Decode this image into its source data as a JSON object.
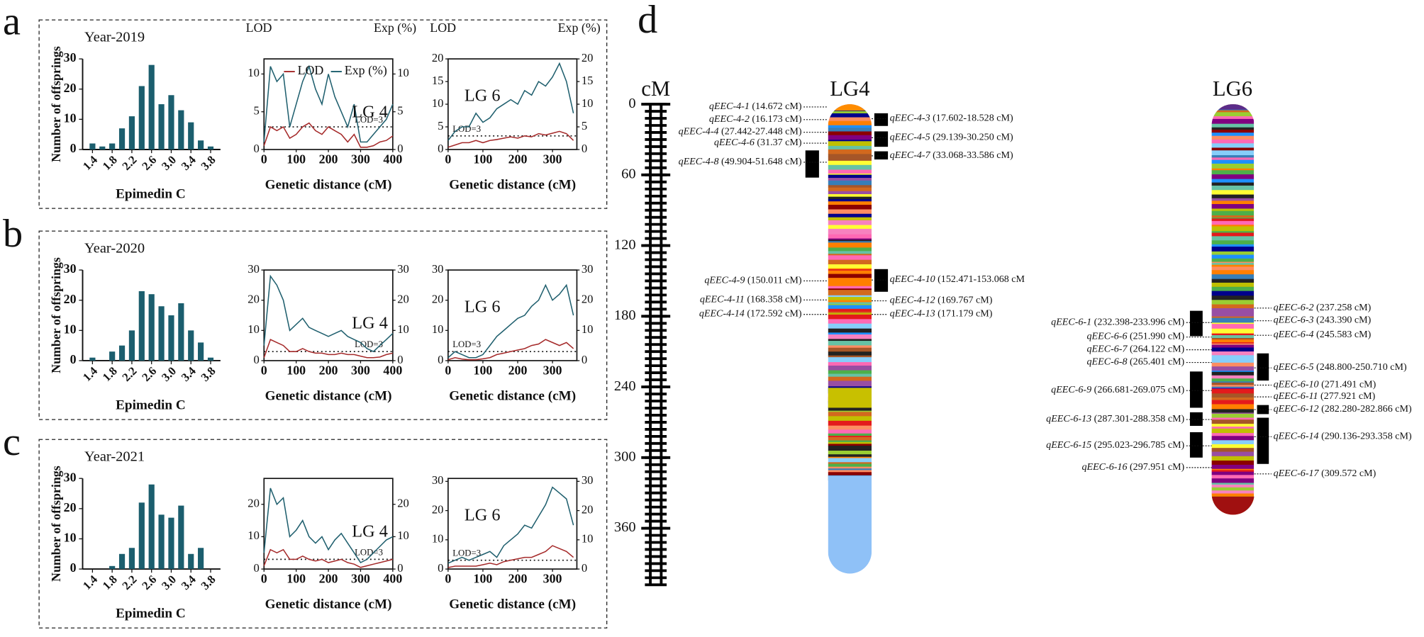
{
  "panel_labels": [
    "a",
    "b",
    "c",
    "d"
  ],
  "chart_data": [
    {
      "type": "bar",
      "title": "Year-2019",
      "x": [
        1.4,
        1.6,
        1.8,
        2.0,
        2.2,
        2.4,
        2.6,
        2.8,
        3.0,
        3.2,
        3.4,
        3.6,
        3.8
      ],
      "values": [
        2,
        1,
        2,
        7,
        11,
        21,
        28,
        15,
        18,
        13,
        9,
        3,
        1
      ],
      "color": "#1b5e6e",
      "xlim": [
        1.2,
        4.0
      ],
      "xticks": [
        1.4,
        1.8,
        2.2,
        2.6,
        {
          "value": 3,
          "label": "3.0"
        },
        3.4,
        3.8
      ],
      "ylim": [
        0,
        30
      ],
      "yticks": [
        0,
        10,
        20,
        30
      ],
      "xlabel": "Epimedin C",
      "ylabel": "Number of  offsprings"
    },
    {
      "type": "line",
      "annotation": "LG 4",
      "x": [
        0,
        20,
        40,
        60,
        80,
        100,
        120,
        140,
        160,
        180,
        200,
        220,
        240,
        260,
        280,
        300,
        320,
        340,
        360,
        380,
        400
      ],
      "series": [
        {
          "name": "LOD",
          "color": "#a52a2a",
          "values": [
            0.5,
            3,
            2.5,
            3,
            1.5,
            2,
            3,
            3.5,
            2.5,
            2,
            3,
            2.5,
            2,
            1,
            2,
            0.3,
            0.3,
            0.5,
            1,
            1.2,
            1.8
          ]
        },
        {
          "name": "Exp (%)",
          "color": "#1f5f6e",
          "axis": "y2",
          "values": [
            1,
            11,
            9,
            10,
            3,
            6,
            9,
            11,
            8,
            6,
            10,
            7,
            5,
            3,
            6,
            1,
            1,
            2,
            3,
            4,
            6
          ]
        }
      ],
      "xlim": [
        0,
        400
      ],
      "xticks": [
        0,
        100,
        200,
        300,
        400
      ],
      "ylim": [
        0,
        12
      ],
      "yticks": [
        0,
        5,
        10
      ],
      "y2lim": [
        0,
        12
      ],
      "y2ticks": [
        0,
        5,
        10
      ],
      "xlabel": "Genetic distance (cM)",
      "ylabel": "LOD",
      "y2label": "Exp (%)",
      "threshold": 3,
      "threshold_label": "LOD=3",
      "legend": "top-left"
    },
    {
      "type": "line",
      "annotation": "LG 6",
      "x": [
        0,
        20,
        40,
        60,
        80,
        100,
        120,
        140,
        160,
        180,
        200,
        220,
        240,
        260,
        280,
        300,
        320,
        340,
        360
      ],
      "series": [
        {
          "name": "LOD",
          "color": "#a52a2a",
          "values": [
            0.5,
            1,
            1.5,
            1.5,
            2,
            1.5,
            2,
            2.2,
            2.5,
            2.8,
            2.5,
            3,
            2.8,
            3.5,
            3.2,
            3.6,
            4,
            3.5,
            2
          ]
        },
        {
          "name": "Exp (%)",
          "color": "#1f5f6e",
          "axis": "y2",
          "values": [
            2,
            4,
            5,
            5,
            8,
            6,
            7,
            9,
            10,
            11,
            10,
            13,
            12,
            15,
            14,
            16,
            19,
            15,
            8
          ]
        }
      ],
      "xlim": [
        0,
        370
      ],
      "xticks": [
        0,
        100,
        200,
        300
      ],
      "ylim": [
        0,
        20
      ],
      "yticks": [
        0,
        5,
        10,
        15,
        20
      ],
      "y2lim": [
        0,
        20
      ],
      "y2ticks": [
        0,
        5,
        10,
        15,
        20
      ],
      "xlabel": "Genetic distance (cM)",
      "ylabel": "LOD",
      "y2label": "Exp (%)",
      "threshold": 3,
      "threshold_label": "LOD=3"
    },
    {
      "type": "bar",
      "title": "Year-2020",
      "x": [
        1.4,
        1.6,
        1.8,
        2.0,
        2.2,
        2.4,
        2.6,
        2.8,
        3.0,
        3.2,
        3.4,
        3.6,
        3.8
      ],
      "values": [
        1,
        0,
        3,
        5,
        10,
        23,
        22,
        18,
        15,
        19,
        10,
        6,
        1
      ],
      "color": "#1b5e6e",
      "xlim": [
        1.2,
        4.0
      ],
      "xticks": [
        1.4,
        1.8,
        2.2,
        2.6,
        {
          "value": 3,
          "label": "3.0"
        },
        3.4,
        3.8
      ],
      "ylim": [
        0,
        30
      ],
      "yticks": [
        0,
        10,
        20,
        30
      ],
      "xlabel": "Epimedin C",
      "ylabel": "Number of  offsprings"
    },
    {
      "type": "line",
      "annotation": "LG 4",
      "x": [
        0,
        20,
        40,
        60,
        80,
        100,
        120,
        140,
        160,
        180,
        200,
        220,
        240,
        260,
        280,
        300,
        320,
        340,
        360,
        380,
        400
      ],
      "series": [
        {
          "name": "LOD",
          "color": "#a52a2a",
          "values": [
            1,
            7,
            6,
            5,
            3,
            3,
            4,
            3,
            2.5,
            2.5,
            2,
            2,
            2.5,
            2,
            2,
            1.5,
            1,
            1,
            1.2,
            2,
            2.5
          ]
        },
        {
          "name": "Exp (%)",
          "color": "#1f5f6e",
          "axis": "y2",
          "values": [
            5,
            28,
            25,
            20,
            10,
            12,
            14,
            11,
            10,
            9,
            8,
            9,
            10,
            8,
            7,
            6,
            4,
            3,
            5,
            7,
            9
          ]
        }
      ],
      "xlim": [
        0,
        400
      ],
      "xticks": [
        0,
        100,
        200,
        300,
        400
      ],
      "ylim": [
        0,
        30
      ],
      "yticks": [
        0,
        10,
        20,
        30
      ],
      "y2lim": [
        0,
        30
      ],
      "y2ticks": [
        0,
        10,
        20,
        30
      ],
      "xlabel": "Genetic distance (cM)",
      "threshold": 3,
      "threshold_label": "LOD=3"
    },
    {
      "type": "line",
      "annotation": "LG 6",
      "x": [
        0,
        20,
        40,
        60,
        80,
        100,
        120,
        140,
        160,
        180,
        200,
        220,
        240,
        260,
        280,
        300,
        320,
        340,
        360
      ],
      "series": [
        {
          "name": "LOD",
          "color": "#a52a2a",
          "values": [
            0.3,
            1,
            0.5,
            0.3,
            0.3,
            0.6,
            1,
            2,
            2.5,
            3,
            3.5,
            4,
            5,
            5.5,
            7,
            6,
            5,
            6,
            4
          ]
        },
        {
          "name": "Exp (%)",
          "color": "#1f5f6e",
          "axis": "y2",
          "values": [
            1,
            3,
            2,
            1,
            1,
            2,
            5,
            8,
            10,
            12,
            14,
            15,
            18,
            20,
            25,
            20,
            22,
            25,
            15
          ]
        }
      ],
      "xlim": [
        0,
        370
      ],
      "xticks": [
        0,
        100,
        200,
        300
      ],
      "ylim": [
        0,
        30
      ],
      "yticks": [
        0,
        10,
        20,
        30
      ],
      "y2lim": [
        0,
        30
      ],
      "y2ticks": [
        0,
        10,
        20,
        30
      ],
      "xlabel": "Genetic distance (cM)",
      "threshold": 3,
      "threshold_label": "LOD=3"
    },
    {
      "type": "bar",
      "title": "Year-2021",
      "x": [
        1.4,
        1.6,
        1.8,
        2.0,
        2.2,
        2.4,
        2.6,
        2.8,
        3.0,
        3.2,
        3.4,
        3.6,
        3.8
      ],
      "values": [
        0,
        0,
        1,
        5,
        7,
        22,
        28,
        18,
        17,
        21,
        5,
        7,
        0
      ],
      "color": "#1b5e6e",
      "xlim": [
        1.2,
        4.0
      ],
      "xticks": [
        1.4,
        1.8,
        2.2,
        2.6,
        {
          "value": 3,
          "label": "3.0"
        },
        3.4,
        3.8
      ],
      "ylim": [
        0,
        30
      ],
      "yticks": [
        0,
        10,
        20,
        30
      ],
      "xlabel": "Epimedin C",
      "ylabel": "Number of  offsprings"
    },
    {
      "type": "line",
      "annotation": "LG 4",
      "x": [
        0,
        20,
        40,
        60,
        80,
        100,
        120,
        140,
        160,
        180,
        200,
        220,
        240,
        260,
        280,
        300,
        320,
        340,
        360,
        380,
        400
      ],
      "series": [
        {
          "name": "LOD",
          "color": "#a52a2a",
          "values": [
            1,
            6,
            5,
            6,
            3,
            3,
            4,
            3,
            2.5,
            3,
            2,
            2.5,
            3,
            2,
            1.5,
            0.5,
            1,
            1.5,
            2,
            2.5,
            3
          ]
        },
        {
          "name": "Exp (%)",
          "color": "#1f5f6e",
          "axis": "y2",
          "values": [
            5,
            25,
            20,
            22,
            10,
            12,
            15,
            10,
            8,
            10,
            6,
            9,
            11,
            8,
            5,
            2,
            3,
            5,
            7,
            9,
            10
          ]
        }
      ],
      "xlim": [
        0,
        400
      ],
      "xticks": [
        0,
        100,
        200,
        300,
        400
      ],
      "ylim": [
        0,
        28
      ],
      "yticks": [
        0,
        10,
        20
      ],
      "y2lim": [
        0,
        28
      ],
      "y2ticks": [
        0,
        10,
        20
      ],
      "xlabel": "Genetic distance (cM)",
      "threshold": 3,
      "threshold_label": "LOD=3"
    },
    {
      "type": "line",
      "annotation": "LG 6",
      "x": [
        0,
        20,
        40,
        60,
        80,
        100,
        120,
        140,
        160,
        180,
        200,
        220,
        240,
        260,
        280,
        300,
        320,
        340,
        360
      ],
      "series": [
        {
          "name": "LOD",
          "color": "#a52a2a",
          "values": [
            0.5,
            1,
            1,
            1,
            1,
            1.5,
            2,
            1.5,
            2.5,
            3,
            3.5,
            4,
            4,
            5,
            6,
            8,
            7,
            6,
            4
          ]
        },
        {
          "name": "Exp (%)",
          "color": "#1f5f6e",
          "axis": "y2",
          "values": [
            2,
            3,
            4,
            3,
            4,
            5,
            6,
            4,
            8,
            10,
            12,
            15,
            14,
            18,
            22,
            28,
            26,
            24,
            15
          ]
        }
      ],
      "xlim": [
        0,
        370
      ],
      "xticks": [
        0,
        100,
        200,
        300
      ],
      "ylim": [
        0,
        31
      ],
      "yticks": [
        0,
        10,
        20,
        30
      ],
      "y2lim": [
        0,
        31
      ],
      "y2ticks": [
        0,
        10,
        20,
        30
      ],
      "xlabel": "Genetic distance (cM)",
      "threshold": 3,
      "threshold_label": "LOD=3"
    }
  ],
  "linkage_map": {
    "axis": {
      "label": "cM",
      "lim": [
        0,
        408
      ],
      "ticks": [
        0,
        60,
        120,
        180,
        240,
        300,
        360
      ]
    },
    "groups": [
      {
        "name": "LG4",
        "qtl": [
          {
            "name": "qEEC-4-1",
            "pos": "(14.672 cM)"
          },
          {
            "name": "qEEC-4-2",
            "pos": "(16.173 cM)"
          },
          {
            "name": "qEEC-4-3",
            "pos": "(17.602-18.528 cM)"
          },
          {
            "name": "qEEC-4-4",
            "pos": "(27.442-27.448 cM)"
          },
          {
            "name": "qEEC-4-5",
            "pos": "(29.139-30.250 cM)"
          },
          {
            "name": "qEEC-4-6",
            "pos": "(31.37 cM)"
          },
          {
            "name": "qEEC-4-7",
            "pos": "(33.068-33.586 cM)"
          },
          {
            "name": "qEEC-4-8",
            "pos": "(49.904-51.648 cM)"
          },
          {
            "name": "qEEC-4-9",
            "pos": "(150.011 cM)"
          },
          {
            "name": "qEEC-4-10",
            "pos": "(152.471-153.068 cM"
          },
          {
            "name": "qEEC-4-11",
            "pos": "(168.358 cM)"
          },
          {
            "name": "qEEC-4-12",
            "pos": "(169.767 cM)"
          },
          {
            "name": "qEEC-4-13",
            "pos": "(171.179 cM)"
          },
          {
            "name": "qEEC-4-14",
            "pos": "(172.592 cM)"
          }
        ]
      },
      {
        "name": "LG6",
        "qtl": [
          {
            "name": "qEEC-6-1",
            "pos": "(232.398-233.996 cM)"
          },
          {
            "name": "qEEC-6-2",
            "pos": "(237.258 cM)"
          },
          {
            "name": "qEEC-6-3",
            "pos": "(243.390 cM)"
          },
          {
            "name": "qEEC-6-4",
            "pos": "(245.583 cM)"
          },
          {
            "name": "qEEC-6-5",
            "pos": "(248.800-250.710 cM)"
          },
          {
            "name": "qEEC-6-6",
            "pos": "(251.990 cM)"
          },
          {
            "name": "qEEC-6-7",
            "pos": "(264.122 cM)"
          },
          {
            "name": "qEEC-6-8",
            "pos": "(265.401 cM)"
          },
          {
            "name": "qEEC-6-9",
            "pos": "(266.681-269.075 cM)"
          },
          {
            "name": "qEEC-6-10",
            "pos": "(271.491 cM)"
          },
          {
            "name": "qEEC-6-11",
            "pos": "(277.921 cM)"
          },
          {
            "name": "qEEC-6-12",
            "pos": "(282.280-282.866 cM)"
          },
          {
            "name": "qEEC-6-13",
            "pos": "(287.301-288.358 cM)"
          },
          {
            "name": "qEEC-6-14",
            "pos": "(290.136-293.358 cM)"
          },
          {
            "name": "qEEC-6-15",
            "pos": "(295.023-296.785 cM)"
          },
          {
            "name": "qEEC-6-16",
            "pos": "(297.951 cM)"
          },
          {
            "name": "qEEC-6-17",
            "pos": "(309.572 cM)"
          }
        ]
      }
    ]
  }
}
